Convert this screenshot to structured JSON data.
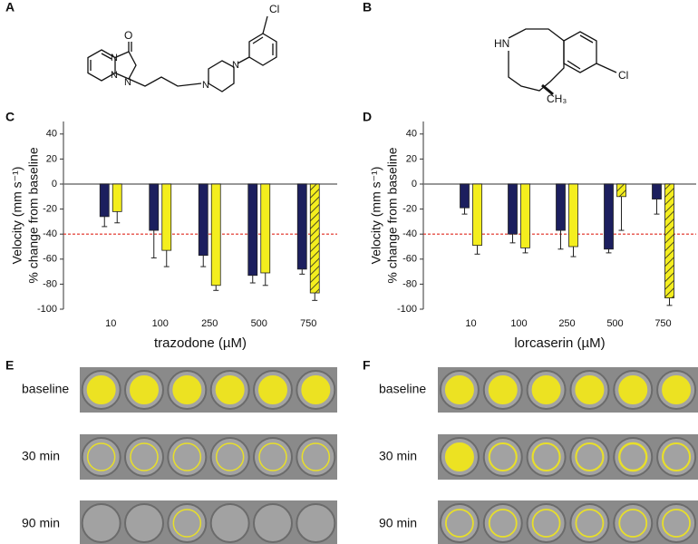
{
  "panels": {
    "labels": [
      "A",
      "B",
      "C",
      "D",
      "E",
      "F"
    ],
    "row_labels": {
      "E": [
        "baseline",
        "30 min",
        "90 min"
      ],
      "F": [
        "baseline",
        "30 min",
        "90 min"
      ]
    }
  },
  "structures": {
    "A": {
      "atoms": [
        "Cl",
        "O",
        "N",
        "N",
        "N",
        "N",
        "N"
      ]
    },
    "B": {
      "atoms": [
        "HN",
        "Cl",
        "CH₃"
      ]
    }
  },
  "chart_data": [
    {
      "type": "bar",
      "categories": [
        "10",
        "100",
        "250",
        "500",
        "750"
      ],
      "xlabel": "trazodone (µM)",
      "ylabel": [
        "Velocity (mm s⁻¹)",
        "% change from baseline"
      ],
      "ylim": [
        -100,
        50
      ],
      "yticks": [
        -100,
        -80,
        -60,
        -40,
        -20,
        0,
        20,
        40
      ],
      "reference_line": -40,
      "reference_color": "#e02a1e",
      "series": [
        {
          "color": "#1c1f5e",
          "values": [
            -26,
            -37,
            -57,
            -73,
            -68
          ],
          "errors": [
            8,
            22,
            9,
            6,
            4
          ]
        },
        {
          "color": "#f4ee1e",
          "values": [
            -22,
            -53,
            -81,
            -71,
            -87
          ],
          "errors": [
            9,
            13,
            4,
            10,
            6
          ],
          "hatched": [
            4
          ]
        }
      ]
    },
    {
      "type": "bar",
      "categories": [
        "10",
        "100",
        "250",
        "500",
        "750"
      ],
      "xlabel": "lorcaserin (µM)",
      "ylabel": [
        "Velocity (mm s⁻¹)",
        "% change from baseline"
      ],
      "ylim": [
        -100,
        50
      ],
      "yticks": [
        -100,
        -80,
        -60,
        -40,
        -20,
        0,
        20,
        40
      ],
      "reference_line": -40,
      "reference_color": "#e02a1e",
      "series": [
        {
          "color": "#1c1f5e",
          "values": [
            -19,
            -40,
            -37,
            -52,
            -12
          ],
          "errors": [
            5,
            7,
            15,
            3,
            12
          ]
        },
        {
          "color": "#f4ee1e",
          "values": [
            -49,
            -51,
            -50,
            -10,
            -91
          ],
          "errors": [
            7,
            4,
            8,
            27,
            6
          ],
          "hatched": [
            3,
            4
          ]
        }
      ]
    }
  ]
}
